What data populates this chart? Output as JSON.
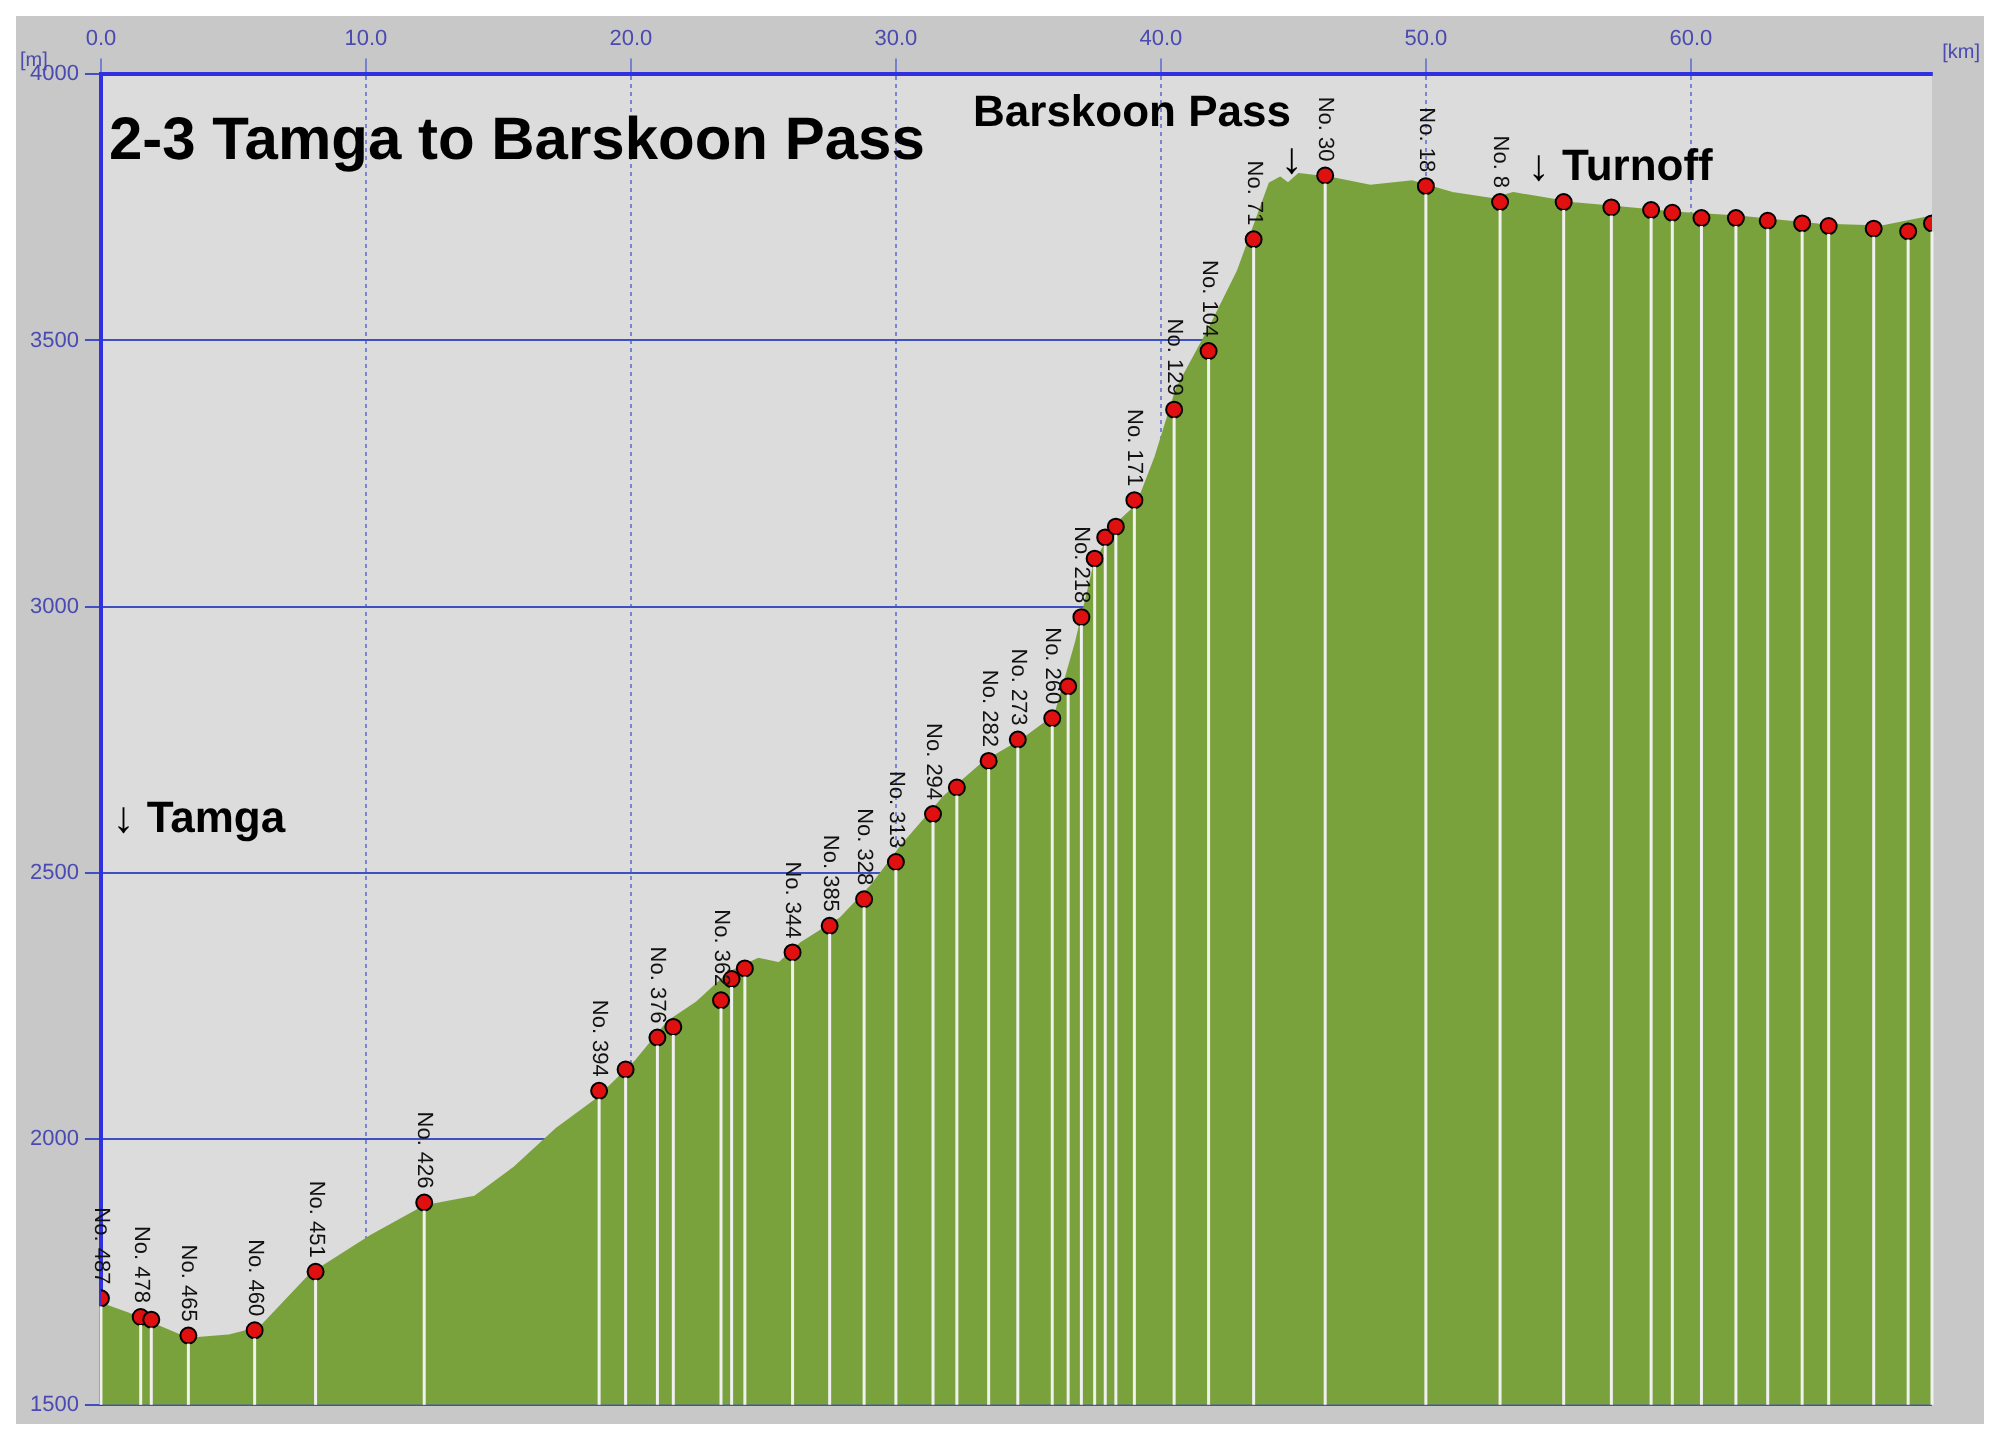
{
  "chart_data": {
    "type": "area",
    "title": "2-3 Tamga to Barskoon Pass",
    "xlabel": "[km]",
    "ylabel": "[m]",
    "xlim": [
      0,
      69.1
    ],
    "xticks": [
      {
        "value": 0,
        "label": "0.0"
      },
      {
        "value": 10,
        "label": "10.0"
      },
      {
        "value": 20,
        "label": "20.0"
      },
      {
        "value": 30,
        "label": "30.0"
      },
      {
        "value": 40,
        "label": "40.0"
      },
      {
        "value": 50,
        "label": "50.0"
      },
      {
        "value": 60,
        "label": "60.0"
      }
    ],
    "ylim": [
      1500,
      4000
    ],
    "yticks": [
      1500,
      2000,
      2500,
      3000,
      3500,
      4000
    ],
    "grid": true,
    "series": [
      {
        "type": "area",
        "color": "#7aa23c",
        "x": [
          0,
          1,
          3.3,
          4.8,
          6,
          7.9,
          10.2,
          12.2,
          14.1,
          15.6,
          17.2,
          18.7,
          20.2,
          21.4,
          22.5,
          23.7,
          24.8,
          25.6,
          26.4,
          27.9,
          29.1,
          30.2,
          31.8,
          33.3,
          34.8,
          36,
          36.8,
          37.5,
          38.3,
          39.1,
          39.8,
          40.6,
          41.8,
          42.9,
          43.7,
          44.1,
          44.5,
          44.8,
          45.2,
          46.4,
          47.9,
          49.5,
          51,
          52.5,
          53.3,
          55.6,
          57.2,
          59.5,
          61.8,
          64.8,
          67.2,
          69.1
        ],
        "values": [
          1690,
          1672,
          1624,
          1630,
          1645,
          1745,
          1818,
          1873,
          1891,
          1946,
          2019,
          2074,
          2147,
          2220,
          2257,
          2312,
          2338,
          2330,
          2367,
          2414,
          2477,
          2550,
          2642,
          2707,
          2751,
          2795,
          2934,
          3081,
          3154,
          3191,
          3282,
          3410,
          3520,
          3630,
          3740,
          3795,
          3806,
          3795,
          3813,
          3806,
          3791,
          3799,
          3777,
          3766,
          3777,
          3758,
          3751,
          3740,
          3733,
          3718,
          3714,
          3733
        ]
      },
      {
        "type": "scatter",
        "color": "#e01010",
        "marker": "circle",
        "x": [
          0,
          1.5,
          1.9,
          3.3,
          5.8,
          8.1,
          12.2,
          18.8,
          19.8,
          21,
          21.6,
          23.4,
          23.8,
          24.3,
          26.1,
          27.5,
          28.8,
          30,
          31.4,
          32.3,
          33.5,
          34.6,
          35.9,
          36.5,
          37,
          37.5,
          37.9,
          38.3,
          39,
          40.5,
          41.8,
          43.5,
          46.2,
          50,
          52.8,
          55.2,
          57,
          58.5,
          59.3,
          60.4,
          61.7,
          62.9,
          64.2,
          65.2,
          66.9,
          68.2,
          69.1
        ],
        "values": [
          1700,
          1665,
          1660,
          1630,
          1640,
          1750,
          1880,
          2090,
          2130,
          2190,
          2210,
          2260,
          2300,
          2320,
          2350,
          2400,
          2450,
          2520,
          2610,
          2660,
          2710,
          2750,
          2790,
          2850,
          2980,
          3090,
          3130,
          3150,
          3200,
          3370,
          3480,
          3690,
          3810,
          3790,
          3760,
          3760,
          3750,
          3745,
          3740,
          3730,
          3730,
          3725,
          3720,
          3715,
          3710,
          3705,
          3720
        ]
      }
    ],
    "annotations": [
      "↓ Tamga",
      "Barskoon Pass",
      "↓",
      "↓ Turnoff",
      {
        "text": "No. 487",
        "x": 0,
        "y": 1700
      },
      {
        "text": "No. 478",
        "x": 1.5,
        "y": 1665
      },
      {
        "text": "No. 465",
        "x": 3.3,
        "y": 1630
      },
      {
        "text": "No. 460",
        "x": 5.8,
        "y": 1640
      },
      {
        "text": "No. 451",
        "x": 8.1,
        "y": 1750
      },
      {
        "text": "No. 426",
        "x": 12.2,
        "y": 1880
      },
      {
        "text": "No. 394",
        "x": 18.8,
        "y": 2090
      },
      {
        "text": "No. 376",
        "x": 21,
        "y": 2190
      },
      {
        "text": "No. 362",
        "x": 23.4,
        "y": 2260
      },
      {
        "text": "No. 344",
        "x": 26.1,
        "y": 2350
      },
      {
        "text": "No. 385",
        "x": 27.5,
        "y": 2400
      },
      {
        "text": "No. 328",
        "x": 28.8,
        "y": 2450
      },
      {
        "text": "No. 313",
        "x": 30,
        "y": 2520
      },
      {
        "text": "No. 294",
        "x": 31.4,
        "y": 2610
      },
      {
        "text": "No. 282",
        "x": 33.5,
        "y": 2710
      },
      {
        "text": "No. 273",
        "x": 34.6,
        "y": 2750
      },
      {
        "text": "No. 260",
        "x": 35.9,
        "y": 2790
      },
      {
        "text": "No. 218",
        "x": 37,
        "y": 2980
      },
      {
        "text": "No. 171",
        "x": 39,
        "y": 3200
      },
      {
        "text": "No. 129",
        "x": 40.5,
        "y": 3370
      },
      {
        "text": "No. 104",
        "x": 41.8,
        "y": 3480
      },
      {
        "text": "No. 71",
        "x": 43.5,
        "y": 3690
      },
      {
        "text": "No. 30",
        "x": 46.2,
        "y": 3810
      },
      {
        "text": "No. 18",
        "x": 50,
        "y": 3790
      },
      {
        "text": "No. 8",
        "x": 52.8,
        "y": 3760
      }
    ]
  }
}
